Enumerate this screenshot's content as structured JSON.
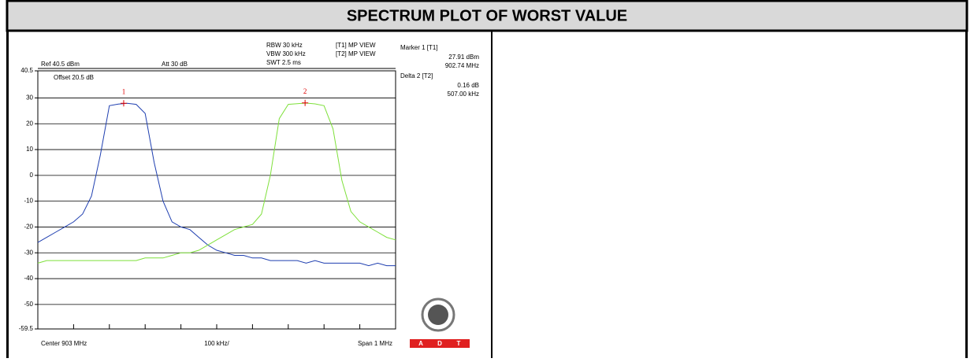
{
  "header": {
    "title": "SPECTRUM PLOT OF WORST VALUE"
  },
  "chart_data": {
    "type": "line",
    "x": [
      902.5,
      902.525,
      902.55,
      902.575,
      902.6,
      902.625,
      902.65,
      902.675,
      902.7,
      902.725,
      902.75,
      902.775,
      902.8,
      902.825,
      902.85,
      902.875,
      902.9,
      902.925,
      902.95,
      902.975,
      903.0,
      903.025,
      903.05,
      903.075,
      903.1,
      903.125,
      903.15,
      903.175,
      903.2,
      903.225,
      903.25,
      903.275,
      903.3,
      903.325,
      903.35,
      903.375,
      903.4,
      903.425,
      903.45,
      903.475,
      903.5
    ],
    "series": [
      {
        "name": "[T1] MP VIEW",
        "color": "#1f3fb0",
        "values": [
          -26,
          -24,
          -22,
          -20,
          -18,
          -15,
          -8,
          8,
          27,
          27.6,
          27.9,
          27.5,
          24,
          5,
          -10,
          -18,
          -20,
          -21,
          -24,
          -27,
          -29,
          -30,
          -31,
          -31,
          -32,
          -32,
          -33,
          -33,
          -33,
          -33,
          -34,
          -33,
          -34,
          -34,
          -34,
          -34,
          -34,
          -35,
          -34,
          -35,
          -35
        ]
      },
      {
        "name": "[T2] MP VIEW",
        "color": "#7ee03a",
        "values": [
          -34,
          -33,
          -33,
          -33,
          -33,
          -33,
          -33,
          -33,
          -33,
          -33,
          -33,
          -33,
          -32,
          -32,
          -32,
          -31,
          -30,
          -30,
          -29,
          -27,
          -25,
          -23,
          -21,
          -20,
          -19,
          -15,
          0,
          22,
          27.5,
          27.8,
          28,
          27.7,
          27,
          18,
          -2,
          -14,
          -18,
          -20,
          -22,
          -24,
          -25
        ]
      }
    ],
    "xlim": [
      902.5,
      903.5
    ],
    "ylim": [
      -59.5,
      40.5
    ],
    "yticks": [
      40.5,
      30,
      20,
      10,
      0,
      -10,
      -20,
      -30,
      -40,
      -50,
      -59.5
    ],
    "grid": true,
    "markers": [
      {
        "label": "1",
        "x": 902.74,
        "y": 27.91
      },
      {
        "label": "2",
        "x": 903.247,
        "y": 28.07
      }
    ],
    "settings_left": [
      "Ref 40.5 dBm",
      "Att 30 dB",
      "Offset 20.5 dB"
    ],
    "settings_top": [
      "RBW 30 kHz",
      "VBW 300 kHz",
      "SWT 2.5 ms"
    ],
    "marker_info": [
      "Marker 1 [T1]",
      "27.91 dBm",
      "902.74 MHz",
      "Delta 2 [T2]",
      "0.16 dB",
      "507.00 kHz"
    ],
    "x_labels": [
      "Center 903 MHz",
      "100 kHz/",
      "Span 1 MHz"
    ],
    "logo": {
      "letters": [
        "A",
        "D",
        "T"
      ]
    }
  }
}
